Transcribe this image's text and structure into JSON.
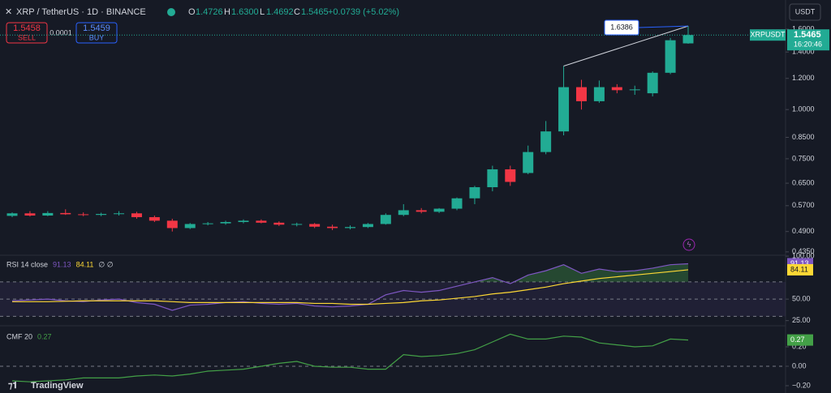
{
  "header": {
    "symbol": "XRP / TetherUS · 1D · BINANCE",
    "o": "O",
    "open": "1.4726",
    "h": "H",
    "high": "1.6300",
    "l": "L",
    "low": "1.4692",
    "c": "C",
    "close": "1.5465",
    "change": "+0.0739 (+5.02%)"
  },
  "trade": {
    "sell_price": "1.5458",
    "sell": "SELL",
    "spread": "0.0001",
    "buy_price": "1.5459",
    "buy": "BUY"
  },
  "currency": "USDT",
  "footer": {
    "brand": "TradingView"
  },
  "chart_data": [
    {
      "type": "candlestick",
      "log_scale": true,
      "up_color": "#22ab94",
      "down_color": "#f23645",
      "symbol_label": "XRPUSDT",
      "countdown": "16:20:46",
      "annotation": {
        "label": "1.6386"
      },
      "open": [
        0.537,
        0.545,
        0.538,
        0.546,
        0.542,
        0.54,
        0.543,
        0.545,
        0.533,
        0.522,
        0.5,
        0.512,
        0.514,
        0.518,
        0.522,
        0.516,
        0.51,
        0.512,
        0.504,
        0.5,
        0.503,
        0.512,
        0.54,
        0.555,
        0.55,
        0.56,
        0.595,
        0.635,
        0.705,
        0.69,
        0.78,
        0.88,
        1.14,
        1.05,
        1.14,
        1.12,
        1.1,
        1.24,
        1.4726
      ],
      "high": [
        0.548,
        0.552,
        0.552,
        0.558,
        0.548,
        0.547,
        0.552,
        0.55,
        0.538,
        0.528,
        0.515,
        0.518,
        0.522,
        0.526,
        0.526,
        0.52,
        0.516,
        0.515,
        0.51,
        0.508,
        0.515,
        0.545,
        0.575,
        0.562,
        0.562,
        0.598,
        0.64,
        0.72,
        0.72,
        0.81,
        0.935,
        1.29,
        1.19,
        1.185,
        1.16,
        1.15,
        1.25,
        1.52,
        1.63
      ],
      "low": [
        0.533,
        0.535,
        0.536,
        0.54,
        0.536,
        0.536,
        0.538,
        0.528,
        0.518,
        0.49,
        0.497,
        0.508,
        0.51,
        0.514,
        0.514,
        0.506,
        0.505,
        0.5,
        0.494,
        0.496,
        0.5,
        0.51,
        0.536,
        0.545,
        0.546,
        0.555,
        0.575,
        0.62,
        0.64,
        0.685,
        0.77,
        0.86,
        1.0,
        1.04,
        1.1,
        1.09,
        1.08,
        1.23,
        1.4692
      ],
      "close": [
        0.545,
        0.538,
        0.546,
        0.542,
        0.54,
        0.543,
        0.545,
        0.533,
        0.522,
        0.5,
        0.512,
        0.514,
        0.518,
        0.522,
        0.516,
        0.51,
        0.512,
        0.504,
        0.5,
        0.503,
        0.512,
        0.54,
        0.555,
        0.55,
        0.56,
        0.595,
        0.635,
        0.705,
        0.655,
        0.78,
        0.88,
        1.14,
        1.05,
        1.14,
        1.12,
        1.125,
        1.24,
        1.5,
        1.5465
      ],
      "ylim": [
        0.4265,
        1.898
      ],
      "yticks": [
        {
          "value": 1.6,
          "label": "1.6000"
        },
        {
          "value": 1.4,
          "label": "1.4000"
        },
        {
          "value": 1.2,
          "label": "1.2000"
        },
        {
          "value": 1.0,
          "label": "1.0000"
        },
        {
          "value": 0.85,
          "label": "0.8500"
        },
        {
          "value": 0.75,
          "label": "0.7500"
        },
        {
          "value": 0.65,
          "label": "0.6500"
        },
        {
          "value": 0.57,
          "label": "0.5700"
        },
        {
          "value": 0.49,
          "label": "0.4900"
        },
        {
          "value": 0.435,
          "label": "0.4350"
        }
      ]
    },
    {
      "type": "line",
      "title": "RSI 14 close",
      "extra": "∅ ∅",
      "series": [
        {
          "color": "#7e57c2",
          "values": [
            48,
            49,
            50,
            48,
            47,
            49,
            50,
            46,
            44,
            37,
            43,
            44,
            46,
            47,
            45,
            44,
            45,
            42,
            41,
            42,
            44,
            55,
            60,
            58,
            60,
            65,
            70,
            75,
            68,
            78,
            83,
            90,
            80,
            85,
            82,
            83,
            86,
            90,
            91.13
          ]
        },
        {
          "color": "#fdd835",
          "values": [
            47,
            47,
            47,
            47.5,
            48,
            48,
            48,
            48,
            48,
            47,
            46,
            46,
            46,
            46,
            46,
            46,
            46,
            45,
            45,
            44,
            44,
            45,
            46,
            48,
            49,
            51,
            53,
            56,
            58,
            61,
            64,
            68,
            71,
            74,
            76,
            78,
            80,
            82,
            84.11
          ]
        }
      ],
      "band": [
        70,
        50,
        30
      ],
      "ylim": [
        20,
        101
      ],
      "yticks": [
        {
          "value": 100,
          "label": "100.00"
        },
        {
          "value": 50,
          "label": "50.00"
        },
        {
          "value": 25,
          "label": "25.00"
        }
      ]
    },
    {
      "type": "line",
      "title": "CMF 20",
      "series": [
        {
          "color": "#43a047",
          "values": [
            -0.15,
            -0.16,
            -0.15,
            -0.14,
            -0.12,
            -0.12,
            -0.12,
            -0.1,
            -0.09,
            -0.1,
            -0.08,
            -0.05,
            -0.04,
            -0.03,
            0.0,
            0.03,
            0.05,
            0.0,
            -0.01,
            -0.01,
            -0.03,
            -0.03,
            0.12,
            0.1,
            0.11,
            0.13,
            0.17,
            0.25,
            0.33,
            0.28,
            0.28,
            0.31,
            0.3,
            0.24,
            0.22,
            0.2,
            0.21,
            0.28,
            0.27
          ]
        }
      ],
      "zero_line": 0,
      "ylim": [
        -0.275,
        0.4
      ],
      "yticks": [
        {
          "value": 0.2,
          "label": "0.20"
        },
        {
          "value": 0,
          "label": "0.00"
        },
        {
          "value": -0.2,
          "label": "−0.20"
        }
      ]
    }
  ]
}
